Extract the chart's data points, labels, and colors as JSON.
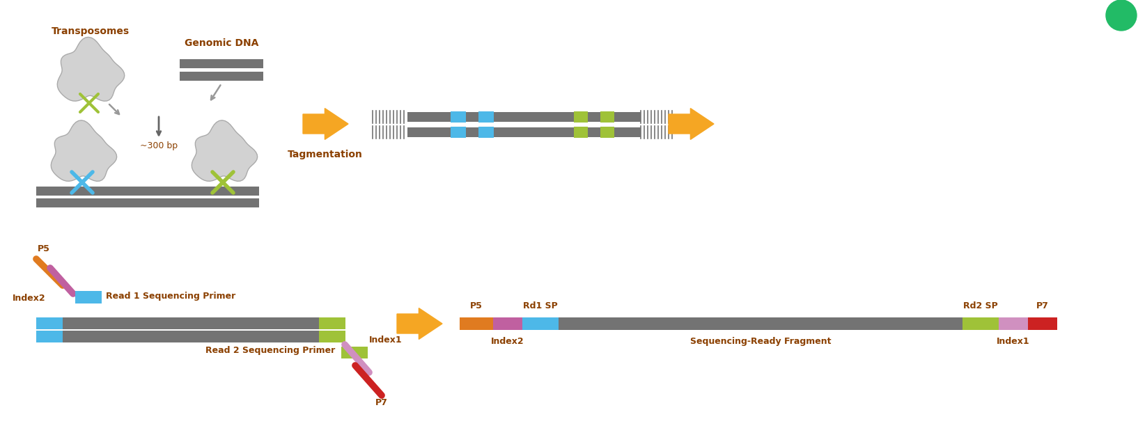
{
  "fig_width": 16.34,
  "fig_height": 6.12,
  "bg_color": "#ffffff",
  "transposomes_label": "Transposomes",
  "genomic_dna_label": "Genomic DNA",
  "tagmentation_label": "Tagmentation",
  "approx_label": "~300 bp",
  "p5_label": "P5",
  "p7_label": "P7",
  "index1_label": "Index1",
  "index2_label": "Index2",
  "rd1sp_label": "Read 1 Sequencing Primer",
  "rd2sp_label": "Read 2 Sequencing Primer",
  "p5_label2": "P5",
  "p7_label2": "P7",
  "index1_label2": "Index1",
  "index2_label2": "Index2",
  "rd1sp_label2": "Rd1 SP",
  "rd2sp_label2": "Rd2 SP",
  "seq_ready_label": "Sequencing-Ready Fragment",
  "colors": {
    "dark_gray": "#666666",
    "medium_gray": "#999999",
    "gray_body": "#737373",
    "blob_fill": "#d2d2d2",
    "blob_edge": "#aaaaaa",
    "lime": "#9fc238",
    "blue": "#4db8e8",
    "orange_arrow": "#f5a623",
    "orange_p5": "#e07b20",
    "purple_index2": "#c060a0",
    "pink_index1": "#d090c0",
    "red_p7": "#cc2222",
    "label_brown": "#8B4000",
    "green_circle": "#22bb66"
  }
}
